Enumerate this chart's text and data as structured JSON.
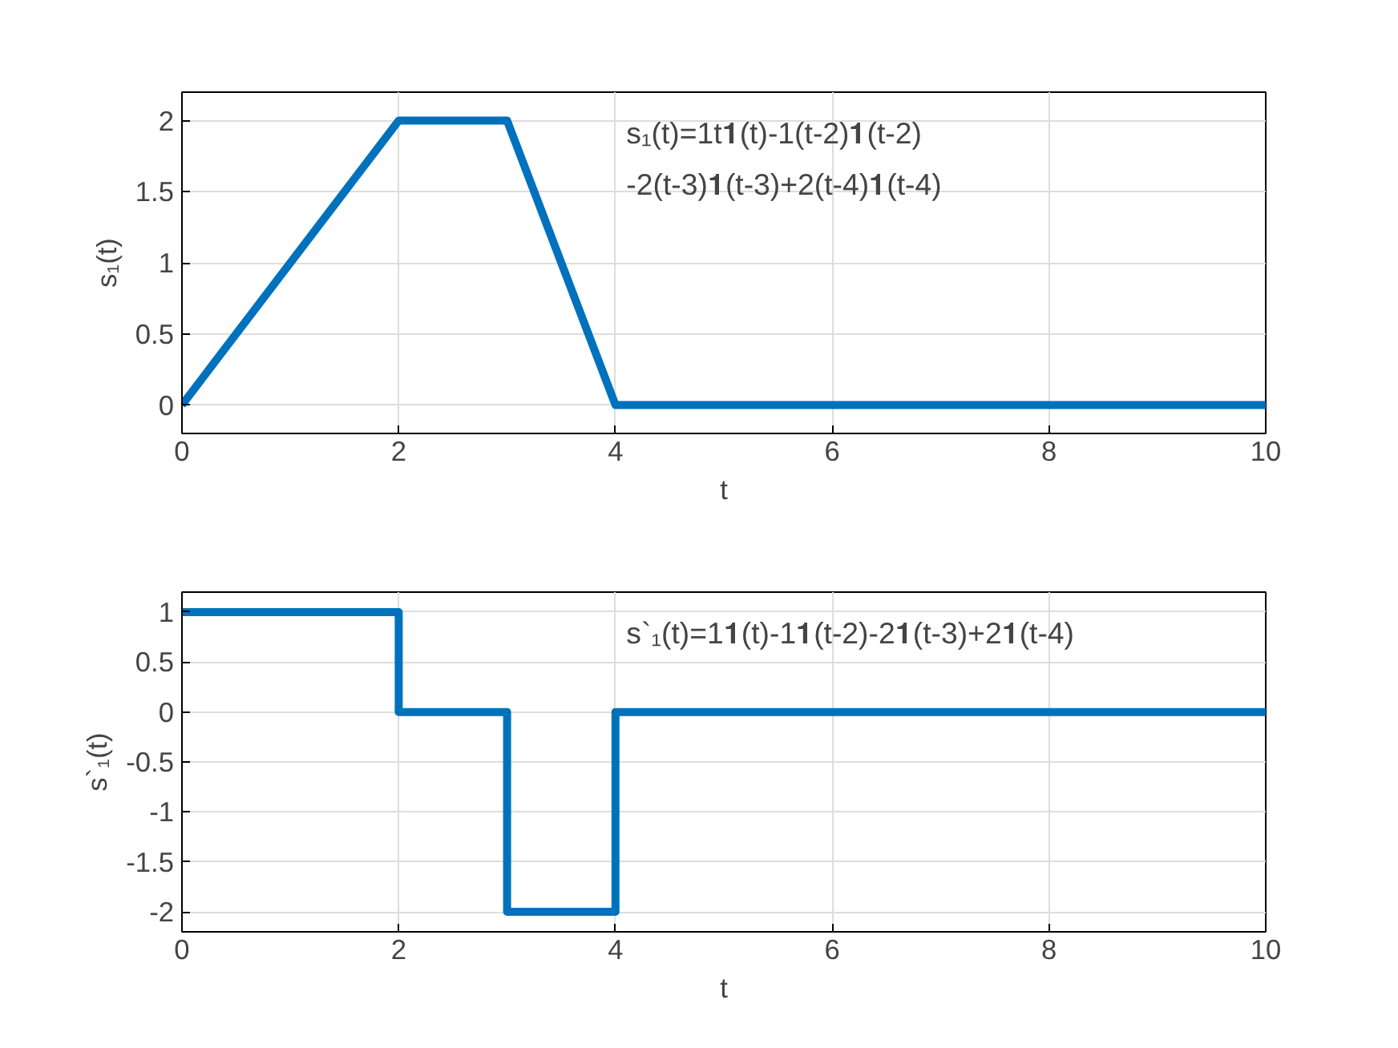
{
  "chart_data": [
    {
      "type": "line",
      "xlabel": "t",
      "ylabel": "s₁(t)",
      "x": [
        0,
        2,
        3,
        4,
        10
      ],
      "series": [
        {
          "color": "#0072bd",
          "values": [
            0,
            2,
            2,
            0,
            0
          ]
        }
      ],
      "xlim": [
        0,
        10
      ],
      "ylim": [
        -0.2,
        2.2
      ],
      "xticks": [
        0,
        2,
        4,
        6,
        8,
        10
      ],
      "yticks": [
        0,
        0.5,
        1,
        1.5,
        2
      ],
      "grid": true,
      "annotations": [
        "s₁(t)=1t𝟏(t)-1(t-2)𝟏(t-2)",
        "-2(t-3)𝟏(t-3)+2(t-4)𝟏(t-4)"
      ]
    },
    {
      "type": "step",
      "xlabel": "t",
      "ylabel": "s`₁(t)",
      "x": [
        0,
        2,
        3,
        4,
        10
      ],
      "series": [
        {
          "color": "#0072bd",
          "values": [
            1,
            0,
            -2,
            0,
            0
          ]
        }
      ],
      "xlim": [
        0,
        10
      ],
      "ylim": [
        -2.2,
        1.2
      ],
      "xticks": [
        0,
        2,
        4,
        6,
        8,
        10
      ],
      "yticks": [
        -2,
        -1.5,
        -1,
        -0.5,
        0,
        0.5,
        1
      ],
      "grid": true,
      "annotations": [
        "s`₁(t)=1𝟏(t)-1𝟏(t-2)-2𝟏(t-3)+2𝟏(t-4)"
      ]
    }
  ]
}
